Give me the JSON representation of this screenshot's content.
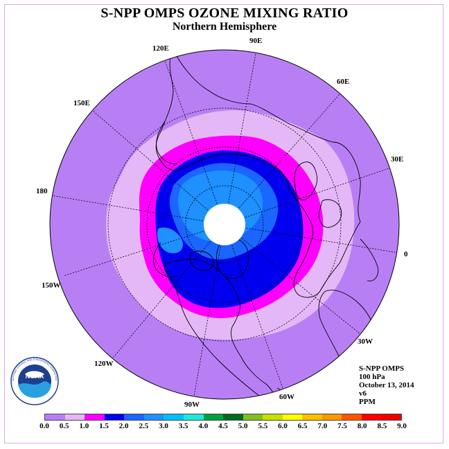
{
  "title": "S-NPP OMPS OZONE MIXING RATIO",
  "subtitle": "Northern Hemisphere",
  "lon_labels": {
    "e90": "90E",
    "e60": "60E",
    "e30": "30E",
    "e0": "0",
    "w30": "30W",
    "w60": "60W",
    "w90": "90W",
    "w120": "120W",
    "w150": "150W",
    "d180": "180",
    "e150": "150E",
    "e120": "120E"
  },
  "info": {
    "instrument": "S-NPP OMPS",
    "level": "100 hPa",
    "date": "October 13, 2014",
    "version": "v6",
    "units": "PPM"
  },
  "legend": {
    "ticks": [
      "0.0",
      "0.5",
      "1.0",
      "1.5",
      "2.0",
      "2.5",
      "3.0",
      "3.5",
      "4.0",
      "4.5",
      "5.0",
      "5.5",
      "6.0",
      "6.5",
      "7.0",
      "7.5",
      "8.0",
      "8.5",
      "9.0"
    ],
    "colors": [
      "#b87ff5",
      "#e4b8f7",
      "#ff00ff",
      "#0000ee",
      "#1a66ff",
      "#1e90ff",
      "#00bfff",
      "#1ee9d9",
      "#00a040",
      "#006b20",
      "#80c020",
      "#c8e000",
      "#ffff00",
      "#ffc000",
      "#ff9900",
      "#ff5500",
      "#ff0000",
      "#ee0000",
      "#8b5a2b"
    ]
  },
  "colors": {
    "level_0_0_5": "#b87ff5",
    "level_0_5_1_0": "#e4b8f7",
    "level_1_0_1_5": "#ff00ff",
    "level_1_5_2_0": "#0000ee",
    "level_2_0_2_5": "#1a66ff",
    "level_2_5_3_0": "#1e90ff",
    "frame": "#e3a6ec"
  },
  "logo": {
    "text": "NOAA",
    "ring_text": "NATIONAL OCEANIC AND ATMOSPHERIC ADMINISTRATION · U.S. DEPARTMENT OF COMMERCE"
  }
}
